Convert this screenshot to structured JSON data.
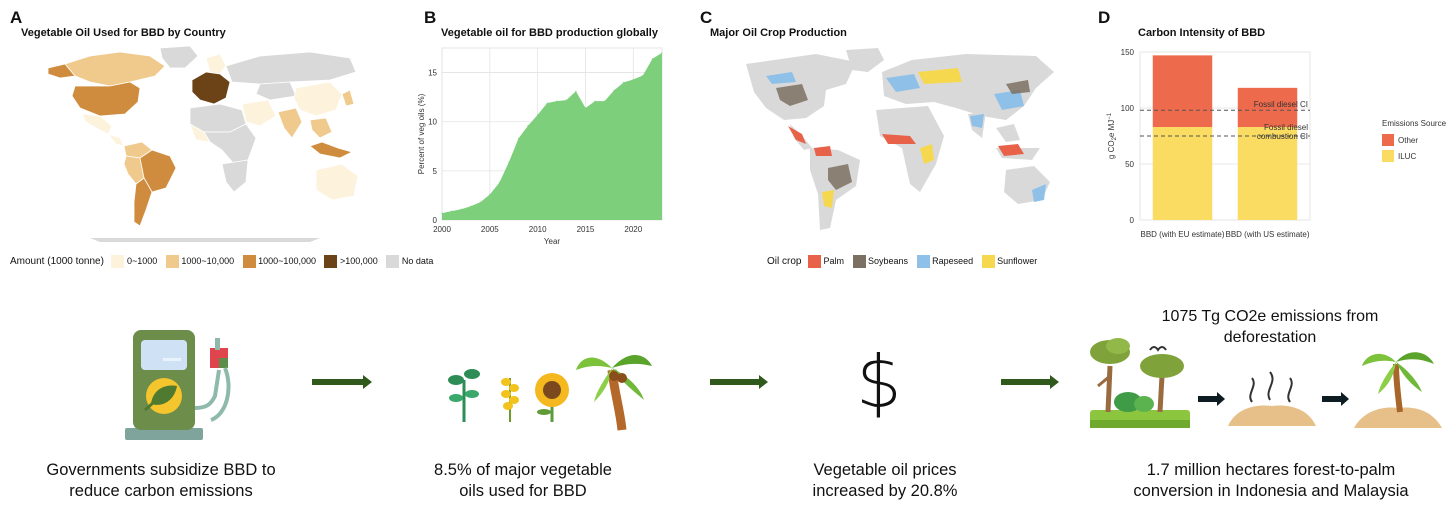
{
  "panels": {
    "a": {
      "letter": "A",
      "title": "Vegetable Oil Used for BBD by Country",
      "legend": {
        "title": "Amount (1000 tonne)",
        "items": [
          {
            "label": "0~1000",
            "color": "#fdf3dc"
          },
          {
            "label": "1000~10,000",
            "color": "#f0c98c"
          },
          {
            "label": "1000~100,000",
            "color": "#d08c3e"
          },
          {
            "label": ">100,000",
            "color": "#6b4317"
          },
          {
            "label": "No data",
            "color": "#d9d9d9"
          }
        ]
      }
    },
    "b": {
      "letter": "B",
      "title": "Vegetable oil for BBD production globally"
    },
    "c": {
      "letter": "C",
      "title": "Major Oil Crop Production",
      "legend": {
        "title": "Oil crop",
        "items": [
          {
            "label": "Palm",
            "color": "#e8624a"
          },
          {
            "label": "Soybeans",
            "color": "#7b7062"
          },
          {
            "label": "Rapeseed",
            "color": "#8fc1e8"
          },
          {
            "label": "Sunflower",
            "color": "#f6d84f"
          }
        ]
      }
    },
    "d": {
      "letter": "D",
      "title": "Carbon Intensity of BBD",
      "legend": {
        "title": "Emissions Source",
        "items": [
          {
            "label": "Other",
            "color": "#ee6a4c"
          },
          {
            "label": "ILUC",
            "color": "#fbdc62"
          }
        ]
      }
    }
  },
  "chart_data": [
    {
      "type": "area",
      "title": "Vegetable oil for BBD production globally",
      "xlabel": "Year",
      "ylabel": "Percent of veg oils (%)",
      "xlim": [
        2000,
        2023
      ],
      "ylim": [
        0,
        17.5
      ],
      "xticks": [
        2000,
        2005,
        2010,
        2015,
        2020
      ],
      "yticks": [
        0,
        5,
        10,
        15
      ],
      "color": "#7dcf7b",
      "x": [
        2000,
        2001,
        2002,
        2003,
        2004,
        2005,
        2006,
        2007,
        2008,
        2009,
        2010,
        2011,
        2012,
        2013,
        2014,
        2015,
        2016,
        2017,
        2018,
        2019,
        2020,
        2021,
        2022,
        2023
      ],
      "y": [
        0.7,
        0.9,
        1.1,
        1.4,
        1.8,
        2.6,
        3.8,
        5.9,
        8.3,
        9.6,
        10.7,
        11.9,
        12.1,
        12.2,
        13.1,
        11.4,
        12.1,
        12.1,
        13.2,
        14.0,
        14.3,
        14.7,
        16.4,
        17.0
      ],
      "grid": true
    },
    {
      "type": "bar",
      "title": "Carbon Intensity of BBD",
      "ylabel": "g CO2e MJ−1",
      "ylim": [
        0,
        150
      ],
      "yticks": [
        0,
        50,
        100,
        150
      ],
      "categories": [
        "BBD (with EU estimate)",
        "BBD (with US estimate)"
      ],
      "stacked": true,
      "series": [
        {
          "name": "ILUC",
          "values": [
            83,
            83
          ],
          "color": "#fbdc62"
        },
        {
          "name": "Other",
          "values": [
            64,
            35
          ],
          "color": "#ee6a4c"
        }
      ],
      "reference_lines": [
        {
          "label": "Fossil diesel CI",
          "value": 98
        },
        {
          "label": "Fossil diesel combustion CI",
          "value": 75
        }
      ],
      "legend_title": "Emissions Source",
      "legend_position": "right",
      "grid": true
    }
  ],
  "flow": {
    "step1_caption": "Governments subsidize BBD to reduce carbon emissions",
    "step2_caption": "8.5% of major vegetable oils used for BBD",
    "step3_symbol": "$",
    "step3_caption": "Vegetable oil prices increased by 20.8%",
    "step4_emissions": "1075 Tg CO2e emissions from deforestation",
    "step4_caption": "1.7 million hectares forest-to-palm conversion in Indonesia and Malaysia"
  }
}
